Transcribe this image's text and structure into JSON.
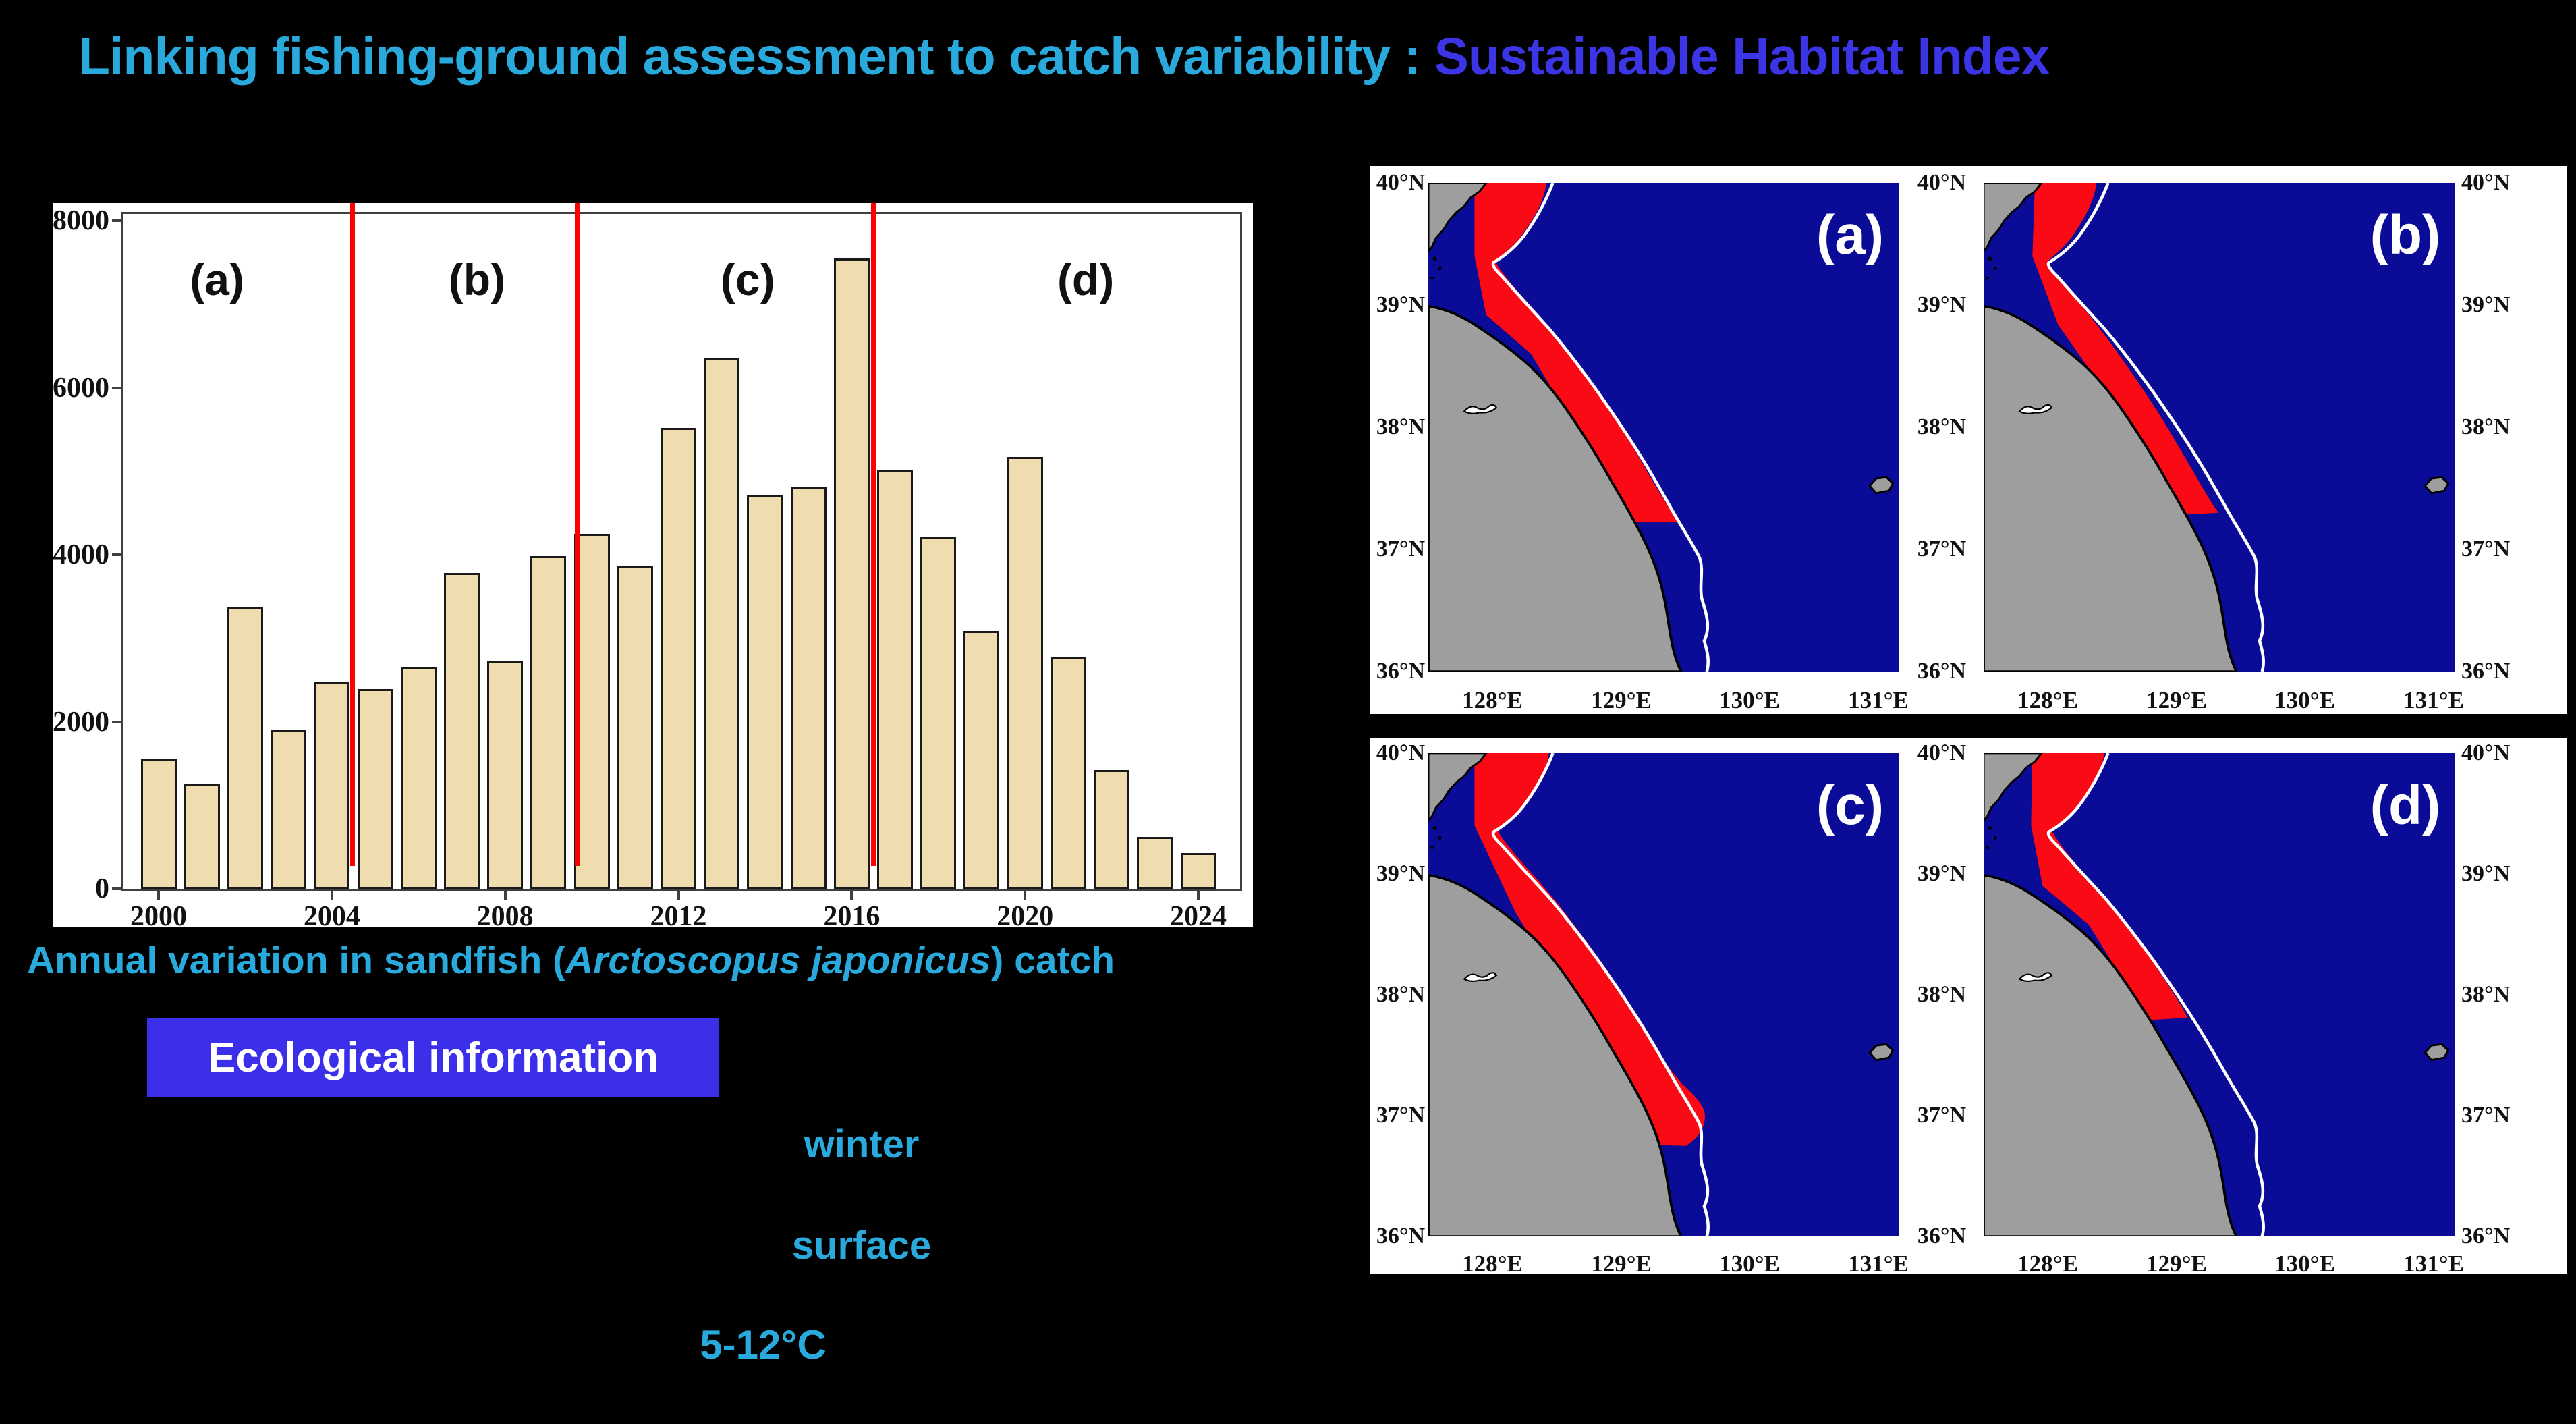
{
  "title": {
    "part1": "Linking fishing-ground assessment to catch variability :",
    "part2": "Sustainable Habitat Index",
    "part1_color": "#29A9DC",
    "part2_color": "#3B35E6"
  },
  "chart_data": {
    "type": "bar",
    "title": "Annual variation in sandfish (Arctoscopus japonicus) catch",
    "xlabel": "",
    "ylabel": "",
    "categories": [
      2000,
      2001,
      2002,
      2003,
      2004,
      2005,
      2006,
      2007,
      2008,
      2009,
      2010,
      2011,
      2012,
      2013,
      2014,
      2015,
      2016,
      2017,
      2018,
      2019,
      2020,
      2021,
      2022,
      2023,
      2024
    ],
    "values": [
      1550,
      1260,
      3380,
      1910,
      2480,
      2390,
      2660,
      3780,
      2720,
      3980,
      4250,
      3860,
      5520,
      6350,
      4720,
      4810,
      7550,
      5010,
      4220,
      3090,
      5170,
      2780,
      1420,
      620,
      430
    ],
    "ylim": [
      0,
      8080
    ],
    "yticks": [
      0,
      2000,
      4000,
      6000,
      8000
    ],
    "xticks": [
      2000,
      2004,
      2008,
      2012,
      2016,
      2020,
      2024
    ],
    "grid": false,
    "legend": null,
    "bar_fill": "#EFDDAF",
    "bar_edge": "#1A1A1A",
    "dividers": {
      "color": "#FF0000",
      "years": [
        2004.47,
        2009.66,
        2016.5
      ]
    },
    "section_labels": [
      {
        "text": "(a)",
        "year": 2001.35
      },
      {
        "text": "(b)",
        "year": 2007.35
      },
      {
        "text": "(c)",
        "year": 2013.6
      },
      {
        "text": "(d)",
        "year": 2021.4
      }
    ],
    "section_label_value": 7300
  },
  "caption": {
    "prefix": "Annual variation in sandfish (",
    "species": "Arctoscopus japonicus",
    "suffix": ") catch"
  },
  "ecology": {
    "header": "Ecological information",
    "items": [
      {
        "text": "winter"
      },
      {
        "text": "surface"
      },
      {
        "text": "5-12°C"
      }
    ]
  },
  "maps": {
    "lat_labels": [
      "40°N",
      "39°N",
      "38°N",
      "37°N",
      "36°N"
    ],
    "lon_labels": [
      "128°E",
      "129°E",
      "130°E",
      "131°E"
    ],
    "panels": [
      {
        "label": "(a)"
      },
      {
        "label": "(b)"
      },
      {
        "label": "(c)"
      },
      {
        "label": "(d)"
      }
    ],
    "colors": {
      "sea": "#0A0B97",
      "land": "#9E9E9E",
      "habitat": "#FA0A14",
      "contour": "#FFFFFF",
      "coast": "#000000"
    }
  }
}
